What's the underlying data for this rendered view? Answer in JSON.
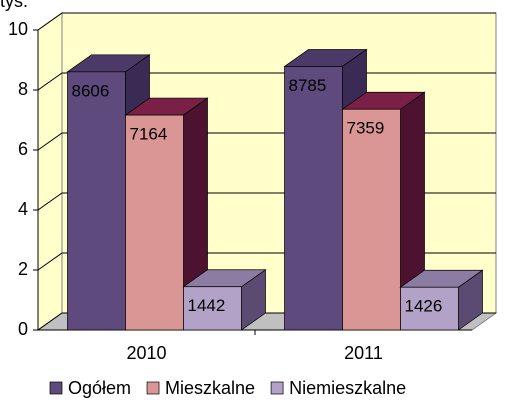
{
  "chart_data": {
    "type": "bar3d",
    "y_label": "tys.",
    "categories": [
      "2010",
      "2011"
    ],
    "series": [
      {
        "name": "Ogółem",
        "color": "#5f4a7d",
        "top": "#4b3a68",
        "side": "#3a2b55",
        "label_color": "#ffffff",
        "values": [
          8.606,
          8.785
        ],
        "value_labels": [
          "8606",
          "8785"
        ]
      },
      {
        "name": "Mieszkalne",
        "color": "#d99694",
        "top": "#7a2046",
        "side": "#4d1230",
        "label_color": "#ffffff",
        "values": [
          7.164,
          7.359
        ],
        "value_labels": [
          "7164",
          "7359"
        ]
      },
      {
        "name": "Niemieszkalne",
        "color": "#b3a2c7",
        "top": "#8c7ca3",
        "side": "#5b4b72",
        "label_color": "#000000",
        "values": [
          1.442,
          1.426
        ],
        "value_labels": [
          "1442",
          "1426"
        ]
      }
    ],
    "ylim": [
      0,
      10
    ],
    "yticks": [
      0,
      2,
      4,
      6,
      8,
      10
    ],
    "grid": true,
    "legend": "bottom"
  }
}
